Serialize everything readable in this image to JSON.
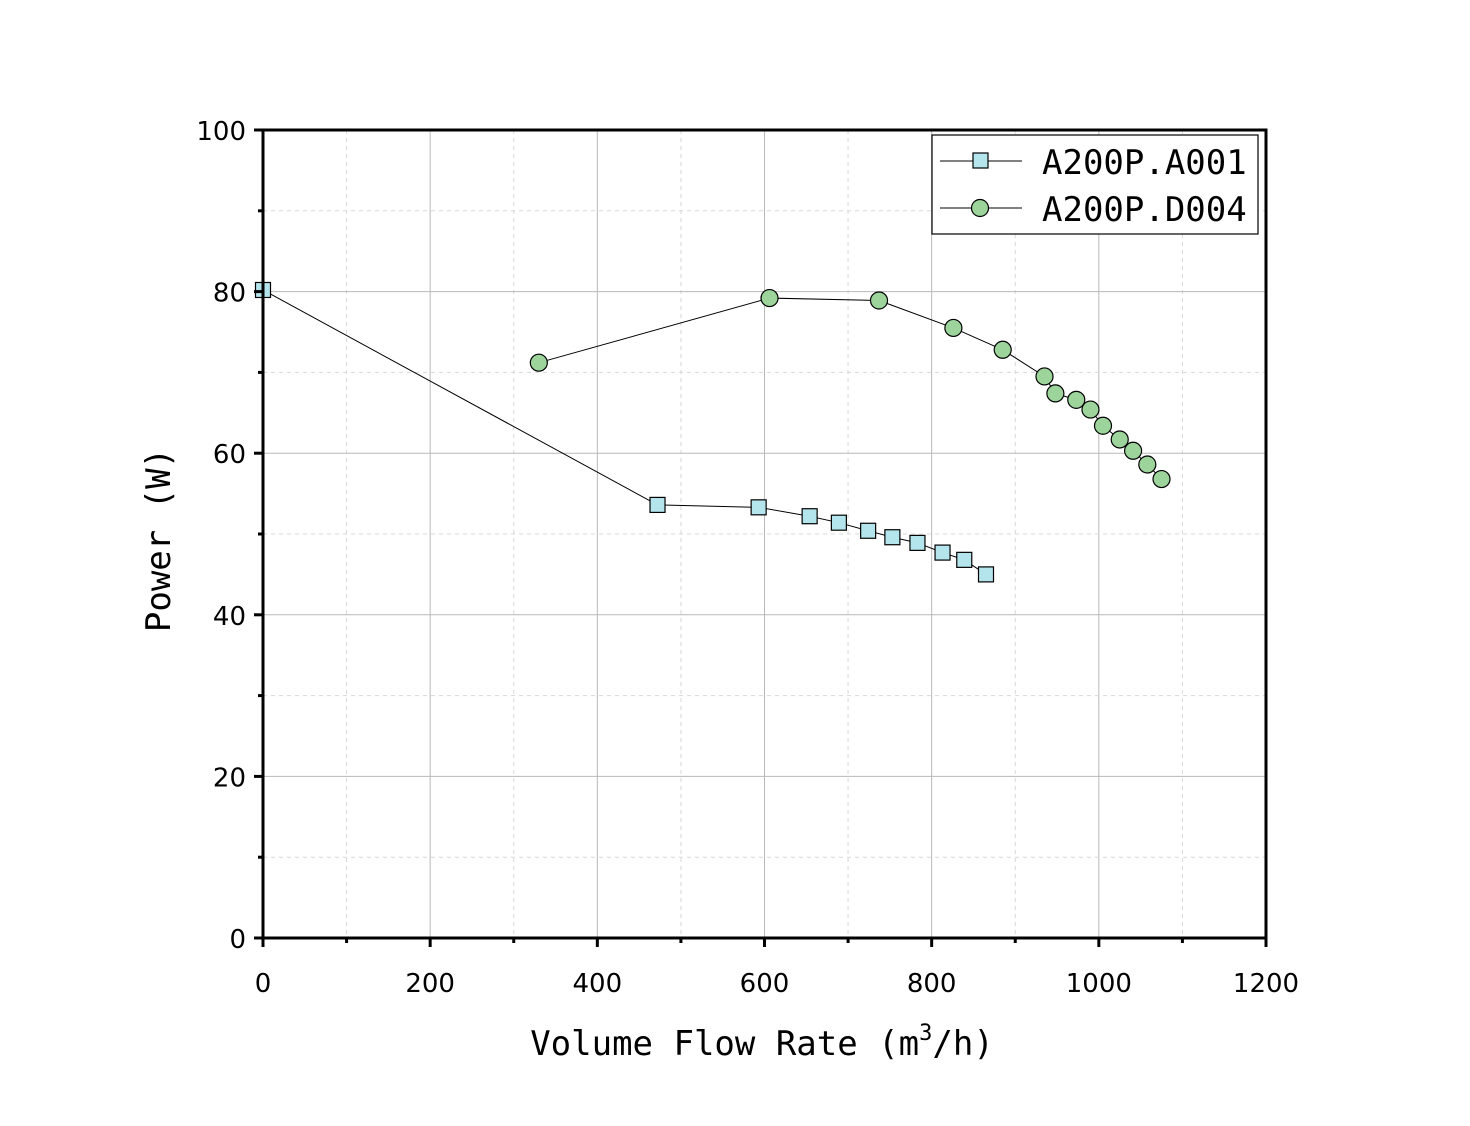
{
  "chart_data": {
    "type": "line",
    "title": "",
    "xlabel": "Volume Flow Rate (m",
    "xlabel_sup": "3",
    "xlabel_suffix": "/h)",
    "ylabel": "Power (W)",
    "xlim": [
      0,
      1200
    ],
    "ylim": [
      0,
      100
    ],
    "x_ticks": [
      0,
      200,
      400,
      600,
      800,
      1000,
      1200
    ],
    "y_ticks": [
      0,
      20,
      40,
      60,
      80,
      100
    ],
    "x_tick_labels": [
      "0",
      "200",
      "400",
      "600",
      "800",
      "1000",
      "1200"
    ],
    "y_tick_labels": [
      "0",
      "20",
      "40",
      "60",
      "80",
      "100"
    ],
    "x_minor_ticks": [
      100,
      300,
      500,
      700,
      900,
      1100
    ],
    "y_minor_ticks": [
      10,
      30,
      50,
      70,
      90
    ],
    "grid": true,
    "legend_position": "top-right",
    "series": [
      {
        "name": "A200P.A001",
        "marker": "square",
        "color": "#b5e5ec",
        "x": [
          0,
          472,
          593,
          654,
          689,
          724,
          753,
          783,
          813,
          839,
          865
        ],
        "y": [
          80.2,
          53.6,
          53.3,
          52.2,
          51.4,
          50.4,
          49.6,
          48.9,
          47.7,
          46.8,
          45.0
        ]
      },
      {
        "name": "A200P.D004",
        "marker": "circle",
        "color": "#9cd49c",
        "x": [
          330,
          606,
          737,
          826,
          885,
          935,
          948,
          973,
          990,
          1005,
          1025,
          1041,
          1058,
          1075
        ],
        "y": [
          71.2,
          79.2,
          78.9,
          75.5,
          72.8,
          69.5,
          67.4,
          66.6,
          65.4,
          63.4,
          61.7,
          60.3,
          58.6,
          56.8
        ]
      }
    ]
  }
}
